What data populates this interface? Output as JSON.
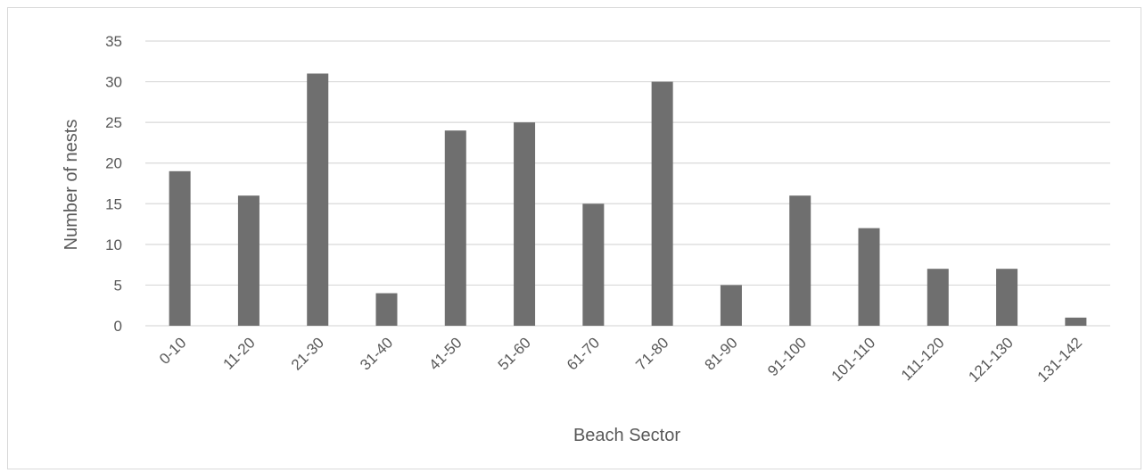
{
  "chart_data": {
    "type": "bar",
    "title": "",
    "xlabel": "Beach Sector",
    "ylabel": "Number of nests",
    "categories": [
      "0-10",
      "11-20",
      "21-30",
      "31-40",
      "41-50",
      "51-60",
      "61-70",
      "71-80",
      "81-90",
      "91-100",
      "101-110",
      "111-120",
      "121-130",
      "131-142"
    ],
    "values": [
      19,
      16,
      31,
      4,
      24,
      25,
      15,
      30,
      5,
      16,
      12,
      7,
      7,
      1
    ],
    "ylim": [
      0,
      35
    ],
    "yticks": [
      "0",
      "5",
      "10",
      "15",
      "20",
      "25",
      "30",
      "35"
    ],
    "grid": true,
    "legend": "none",
    "colors": {
      "bar": "#6f6f6f",
      "grid": "#d9d9d9",
      "text": "#595959"
    }
  }
}
